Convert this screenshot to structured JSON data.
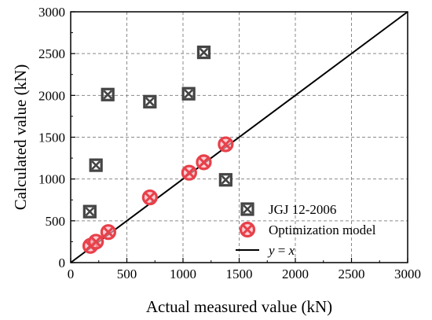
{
  "chart_data": {
    "type": "scatter",
    "xlabel": "Actual measured value (kN)",
    "ylabel": "Calculated value (kN)",
    "xlim": [
      0,
      3000
    ],
    "ylim": [
      0,
      3000
    ],
    "x_ticks": [
      0,
      500,
      1000,
      1500,
      2000,
      2500,
      3000
    ],
    "y_ticks": [
      0,
      500,
      1000,
      1500,
      2000,
      2500,
      3000
    ],
    "grid": true,
    "legend_position": "bottom-right",
    "series": [
      {
        "name": "JGJ 12-2006",
        "marker": "square-x",
        "color": "#444444",
        "points": [
          {
            "x": 170,
            "y": 610
          },
          {
            "x": 225,
            "y": 1165
          },
          {
            "x": 330,
            "y": 2010
          },
          {
            "x": 705,
            "y": 1925
          },
          {
            "x": 1050,
            "y": 2020
          },
          {
            "x": 1185,
            "y": 2515
          },
          {
            "x": 1380,
            "y": 990
          }
        ]
      },
      {
        "name": "Optimization model",
        "marker": "circle-x",
        "color": "#e8404a",
        "points": [
          {
            "x": 175,
            "y": 200
          },
          {
            "x": 225,
            "y": 250
          },
          {
            "x": 335,
            "y": 365
          },
          {
            "x": 705,
            "y": 780
          },
          {
            "x": 1055,
            "y": 1075
          },
          {
            "x": 1185,
            "y": 1200
          },
          {
            "x": 1380,
            "y": 1415
          }
        ]
      }
    ],
    "reference_line": {
      "label_y": "y",
      "label_eq": " = ",
      "label_x": "x",
      "from": [
        0,
        0
      ],
      "to": [
        3000,
        3000
      ],
      "color": "#000000"
    }
  }
}
